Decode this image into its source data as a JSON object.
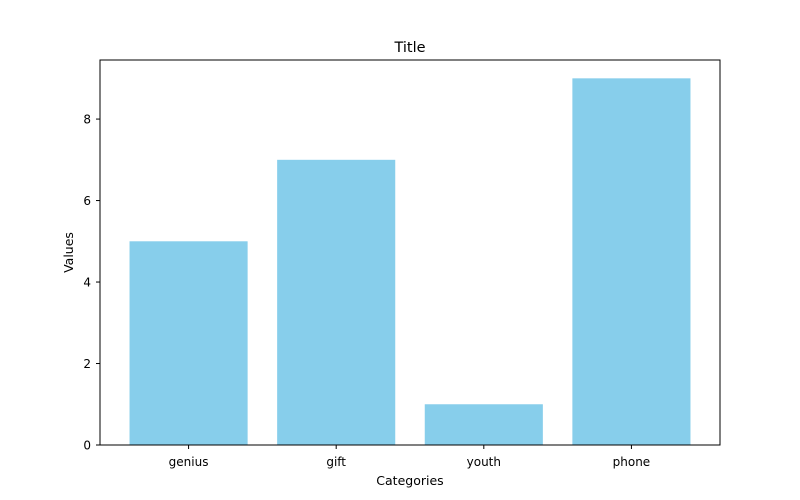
{
  "chart_data": {
    "type": "bar",
    "title": "Title",
    "xlabel": "Categories",
    "ylabel": "Values",
    "categories": [
      "genius",
      "gift",
      "youth",
      "phone"
    ],
    "values": [
      5,
      7,
      1,
      9
    ],
    "ylim": [
      0,
      9.45
    ],
    "yticks": [
      0,
      2,
      4,
      6,
      8
    ],
    "bar_color": "#87CEEB",
    "grid": false,
    "legend": "none"
  }
}
